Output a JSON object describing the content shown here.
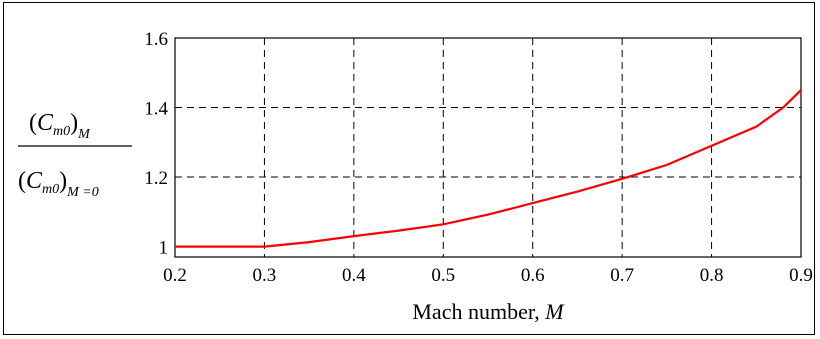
{
  "chart_data": {
    "type": "line",
    "title": "",
    "xlabel": "Mach number, ",
    "xlabel_var": "M",
    "ylabel": {
      "numerator_symbol": "C",
      "numerator_sub": "m0",
      "numerator_outer_sub": "M",
      "denominator_symbol": "C",
      "denominator_sub": "m0",
      "denominator_outer_sub": "M =0"
    },
    "xlim": [
      0.2,
      0.9
    ],
    "ylim": [
      0.97,
      1.6
    ],
    "x_ticks": [
      "0.2",
      "0.3",
      "0.4",
      "0.5",
      "0.6",
      "0.7",
      "0.8",
      "0.9"
    ],
    "x_tick_values": [
      0.2,
      0.3,
      0.4,
      0.5,
      0.6,
      0.7,
      0.8,
      0.9
    ],
    "y_ticks": [
      "1",
      "1.2",
      "1.4",
      "1.6"
    ],
    "y_tick_values": [
      1.0,
      1.2,
      1.4,
      1.6
    ],
    "grid": true,
    "line_color": "#ff0000",
    "series": [
      {
        "x": [
          0.2,
          0.3,
          0.35,
          0.4,
          0.45,
          0.5,
          0.55,
          0.6,
          0.65,
          0.7,
          0.75,
          0.8,
          0.85,
          0.88,
          0.9
        ],
        "y": [
          1.0,
          1.0,
          1.013,
          1.03,
          1.046,
          1.064,
          1.092,
          1.125,
          1.158,
          1.195,
          1.235,
          1.29,
          1.345,
          1.4,
          1.45
        ]
      }
    ]
  }
}
